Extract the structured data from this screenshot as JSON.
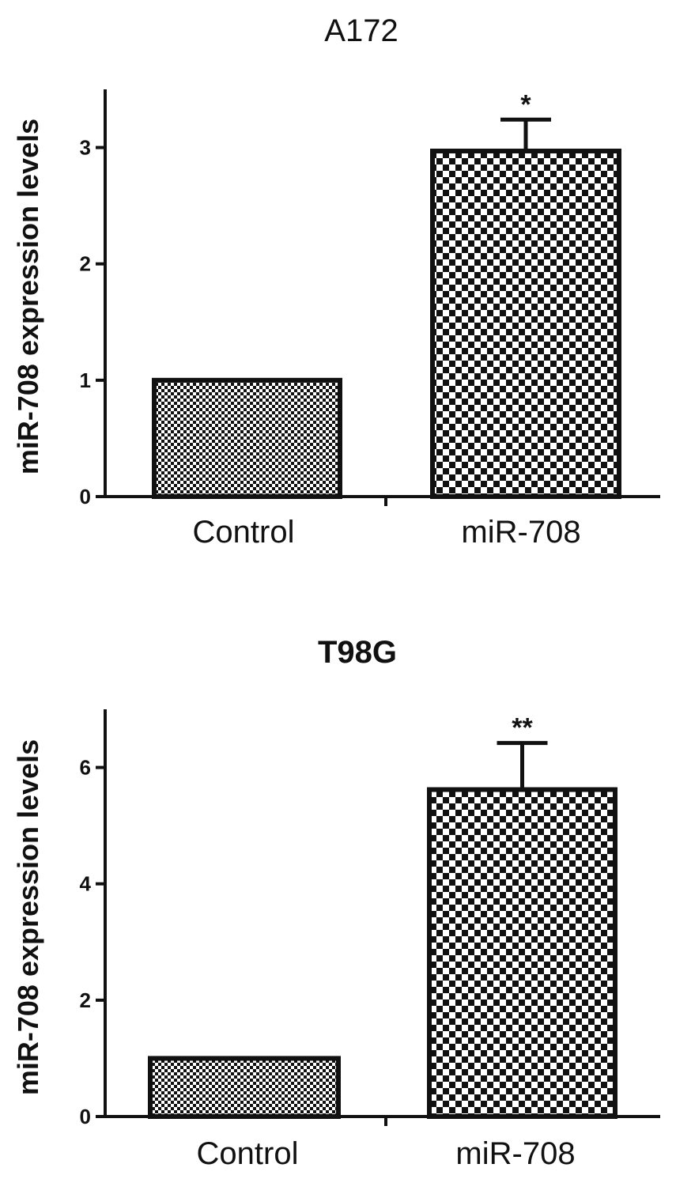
{
  "chart_data": [
    {
      "type": "bar",
      "title": "A172",
      "ylabel": "miR-708 expression levels",
      "xlabel": "",
      "categories": [
        "Control",
        "miR-708"
      ],
      "values": [
        1.0,
        2.97
      ],
      "error_upper": [
        0,
        0.27
      ],
      "significance": [
        "",
        "*"
      ],
      "ylim": [
        0,
        3.5
      ],
      "yticks": [
        0,
        1,
        2,
        3
      ],
      "grid": false,
      "legend": "none"
    },
    {
      "type": "bar",
      "title": "T98G",
      "ylabel": "miR-708 expression levels",
      "xlabel": "",
      "categories": [
        "Control",
        "miR-708"
      ],
      "values": [
        1.0,
        5.62
      ],
      "error_upper": [
        0,
        0.8
      ],
      "significance": [
        "",
        "**"
      ],
      "ylim": [
        0,
        7
      ],
      "yticks": [
        0,
        2,
        4,
        6
      ],
      "grid": false,
      "legend": "none"
    }
  ]
}
